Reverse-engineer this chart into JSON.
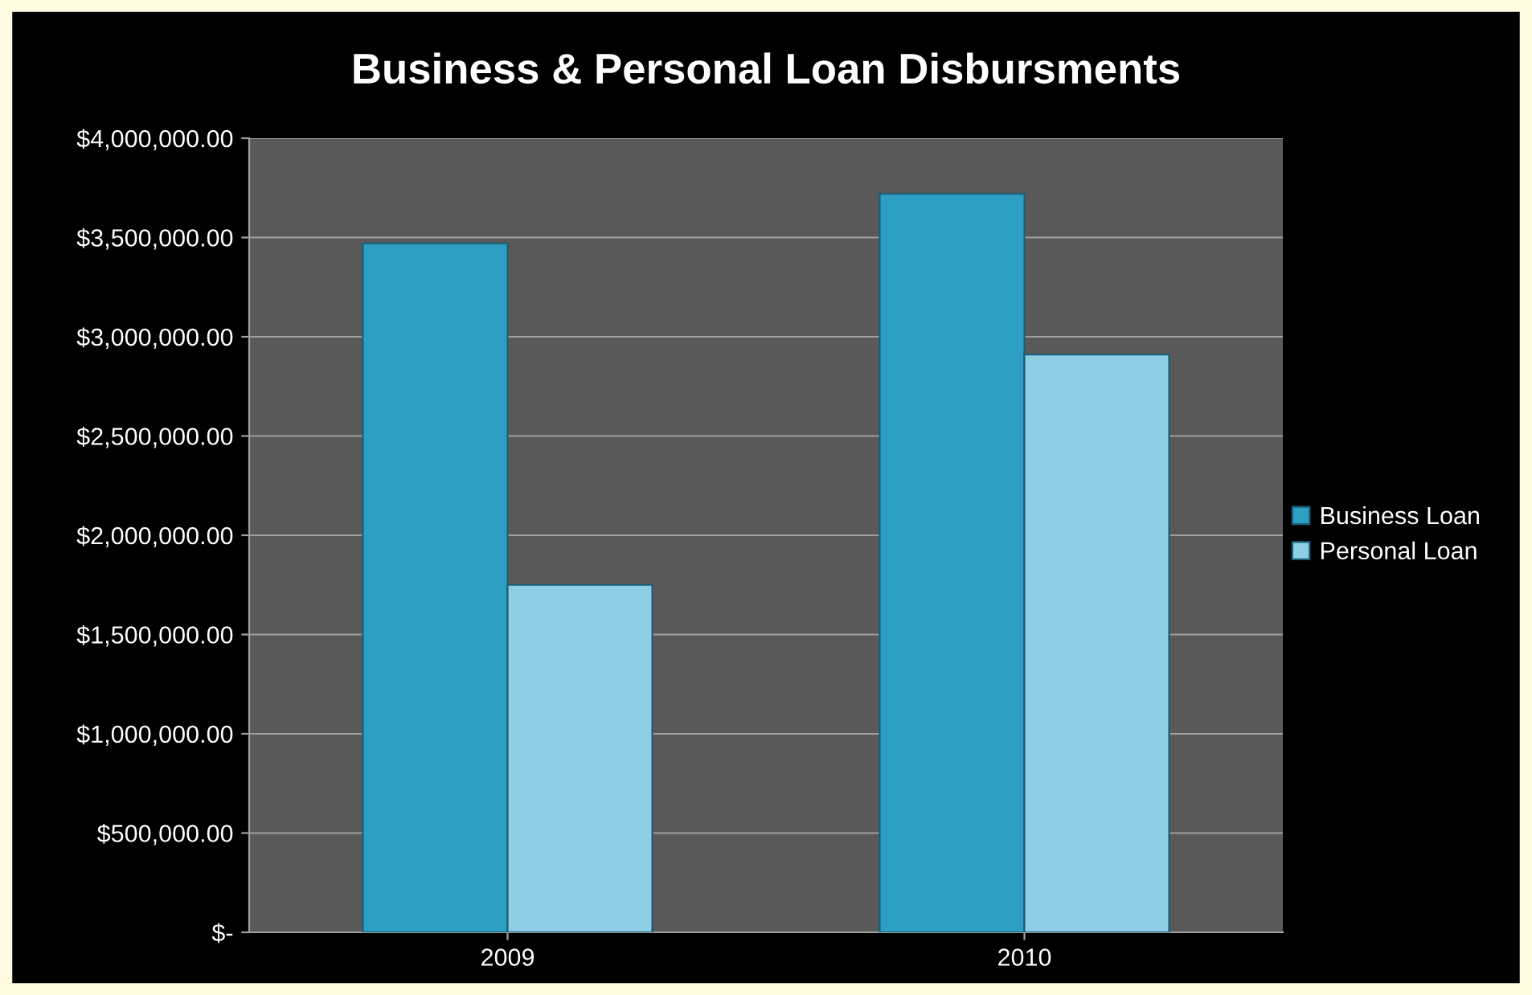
{
  "chart_data": {
    "type": "bar",
    "title": "Business & Personal Loan Disbursments",
    "categories": [
      "2009",
      "2010"
    ],
    "series": [
      {
        "name": "Business Loan",
        "color": "#2e9fc4",
        "values": [
          3470000,
          3720000
        ]
      },
      {
        "name": "Personal Loan",
        "color": "#8fcfe6",
        "values": [
          1750000,
          2910000
        ]
      }
    ],
    "ylim": [
      0,
      4000000
    ],
    "yticks": [
      {
        "value": 0,
        "label": "$-"
      },
      {
        "value": 500000,
        "label": "$500,000.00"
      },
      {
        "value": 1000000,
        "label": "$1,000,000.00"
      },
      {
        "value": 1500000,
        "label": "$1,500,000.00"
      },
      {
        "value": 2000000,
        "label": "$2,000,000.00"
      },
      {
        "value": 2500000,
        "label": "$2,500,000.00"
      },
      {
        "value": 3000000,
        "label": "$3,000,000.00"
      },
      {
        "value": 3500000,
        "label": "$3,500,000.00"
      },
      {
        "value": 4000000,
        "label": "$4,000,000.00"
      }
    ],
    "grid": "y",
    "legend": "right"
  }
}
